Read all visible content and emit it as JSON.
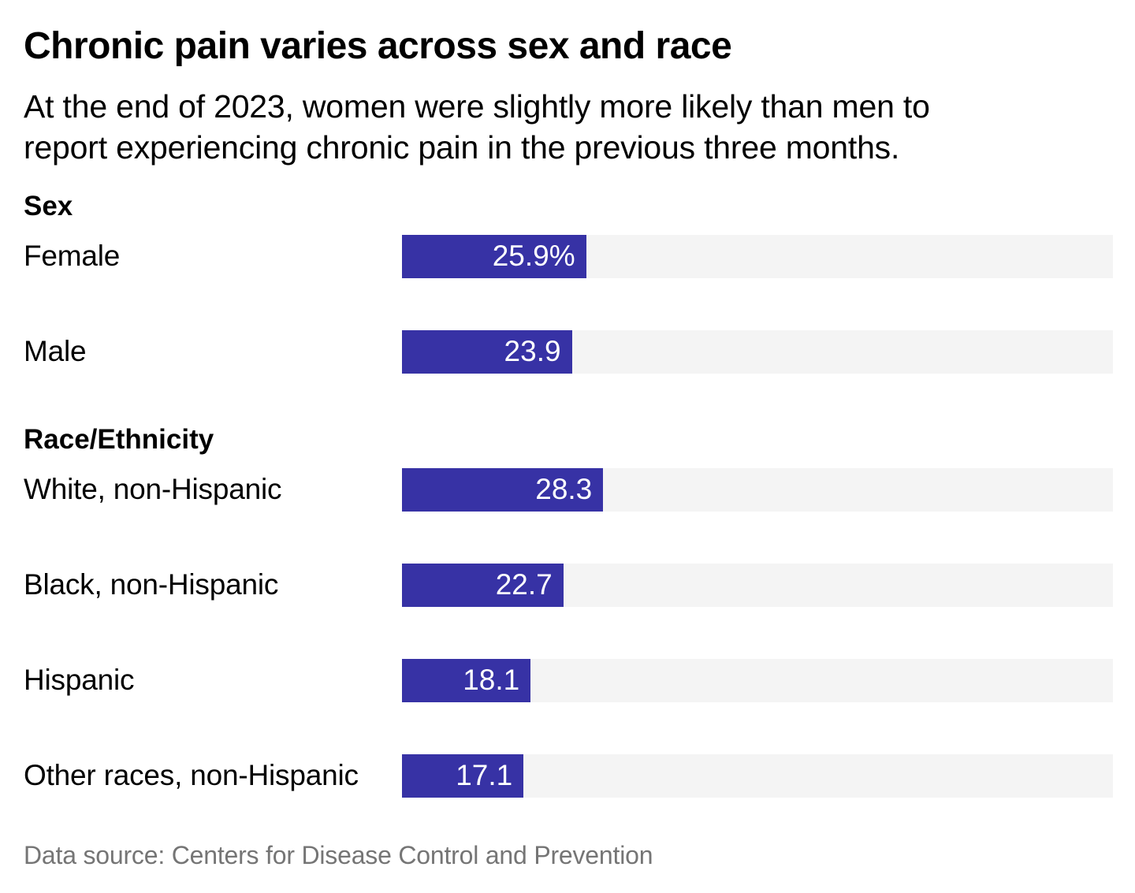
{
  "chart_data": {
    "type": "bar",
    "orientation": "horizontal",
    "title": "Chronic pain varies across sex and race",
    "subtitle": "At the end of 2023, women were slightly more likely than men to\nreport experiencing chronic pain in the previous three months.",
    "unit": "%",
    "xlim": [
      0,
      100
    ],
    "grid": false,
    "legend": "none",
    "groups": [
      {
        "label": "Sex",
        "rows": [
          {
            "label": "Female",
            "value": 25.9,
            "display": "25.9%"
          },
          {
            "label": "Male",
            "value": 23.9,
            "display": "23.9"
          }
        ]
      },
      {
        "label": "Race/Ethnicity",
        "rows": [
          {
            "label": "White, non-Hispanic",
            "value": 28.3,
            "display": "28.3"
          },
          {
            "label": "Black, non-Hispanic",
            "value": 22.7,
            "display": "22.7"
          },
          {
            "label": "Hispanic",
            "value": 18.1,
            "display": "18.1"
          },
          {
            "label": "Other races, non-Hispanic",
            "value": 17.1,
            "display": "17.1"
          }
        ]
      }
    ],
    "source": "Data source: Centers for Disease Control and Prevention",
    "colors": {
      "background": "#ffffff",
      "bar": "#3732a5",
      "track": "#f4f4f4",
      "title": "#000000",
      "label": "#000000",
      "value_text": "#ffffff",
      "source_text": "#757575"
    }
  }
}
